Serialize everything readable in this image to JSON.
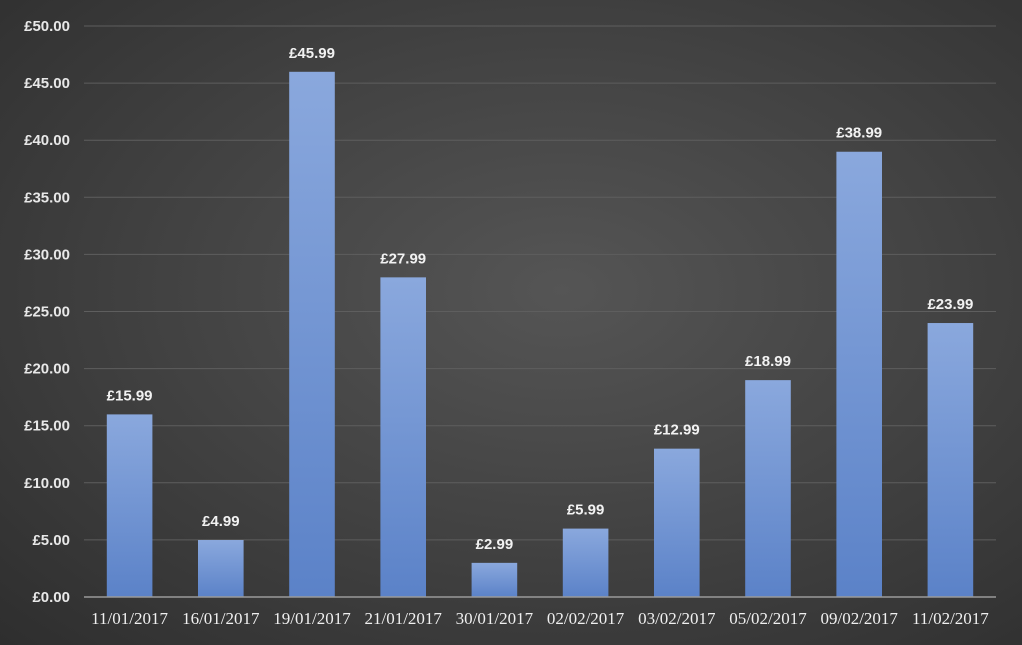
{
  "chart_data": {
    "type": "bar",
    "title": "",
    "xlabel": "",
    "ylabel": "",
    "categories": [
      "11/01/2017",
      "16/01/2017",
      "19/01/2017",
      "21/01/2017",
      "30/01/2017",
      "02/02/2017",
      "03/02/2017",
      "05/02/2017",
      "09/02/2017",
      "11/02/2017"
    ],
    "values": [
      15.99,
      4.99,
      45.99,
      27.99,
      2.99,
      5.99,
      12.99,
      18.99,
      38.99,
      23.99
    ],
    "data_labels": [
      "£15.99",
      "£4.99",
      "£45.99",
      "£27.99",
      "£2.99",
      "£5.99",
      "£12.99",
      "£18.99",
      "£38.99",
      "£23.99"
    ],
    "ylim": [
      0,
      50
    ],
    "yticks": [
      0,
      5,
      10,
      15,
      20,
      25,
      30,
      35,
      40,
      45,
      50
    ],
    "ytick_labels": [
      "£0.00",
      "£5.00",
      "£10.00",
      "£15.00",
      "£20.00",
      "£25.00",
      "£30.00",
      "£35.00",
      "£40.00",
      "£45.00",
      "£50.00"
    ],
    "grid": true,
    "legend": "none",
    "colors": {
      "bar_top": "#8aa8dd",
      "bar_bottom": "#5b82c8",
      "gridline": "#5e5e5e",
      "axis": "#9a9a9a",
      "background": "#444444"
    }
  }
}
